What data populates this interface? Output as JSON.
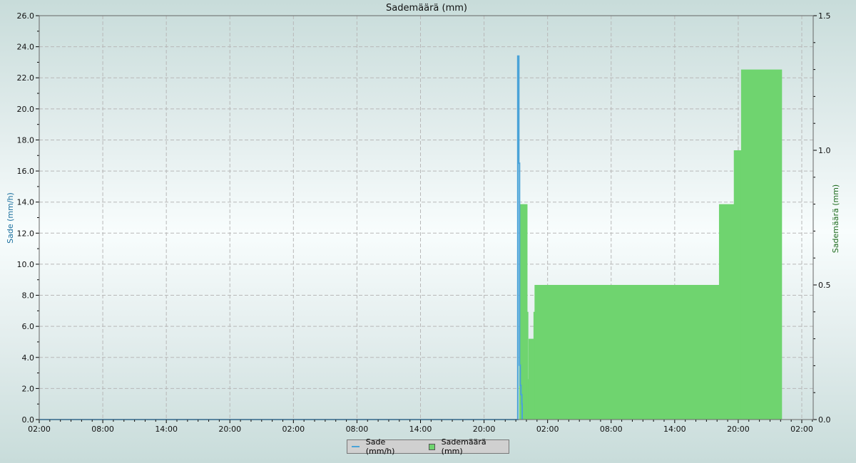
{
  "chart_data": {
    "type": "line+area",
    "title": "Sademäärä (mm)",
    "ylabel_left": "Sade (mm/h)",
    "ylabel_right": "Sademäärä (mm)",
    "ylim_left": [
      0,
      26
    ],
    "ylim_right": [
      0,
      1.5
    ],
    "xlim": [
      "d1 02:00",
      "d4 03:04"
    ],
    "x_tick_labels": [
      "02:00",
      "08:00",
      "14:00",
      "20:00",
      "02:00",
      "08:00",
      "14:00",
      "20:00",
      "02:00",
      "08:00",
      "14:00",
      "20:00",
      "02:00"
    ],
    "y_left_ticks": [
      "0.0",
      "2.0",
      "4.0",
      "6.0",
      "8.0",
      "10.0",
      "12.0",
      "14.0",
      "16.0",
      "18.0",
      "20.0",
      "22.0",
      "24.0",
      "26.0"
    ],
    "y_right_ticks": [
      "0.0",
      "0.5",
      "1.0",
      "1.5"
    ],
    "grid": true,
    "legend_position": "bottom-center",
    "series": [
      {
        "name": "Sade (mm/h)",
        "axis": "left",
        "kind": "line",
        "color": "#4aa3d8",
        "x": [
          "d1 02:00",
          "d2 23:10",
          "d2 23:11",
          "d2 23:17",
          "d2 23:21",
          "d2 23:25",
          "d2 23:29",
          "d2 23:34",
          "d2 23:36"
        ],
        "y": [
          0,
          0,
          23.4,
          16.5,
          3.5,
          2.2,
          1.6,
          1.0,
          0
        ]
      },
      {
        "name": "Sademäärä (mm)",
        "axis": "right",
        "kind": "step-area",
        "color": "#6fd46f",
        "x": [
          "d2 23:19",
          "d3 00:04",
          "d3 00:09",
          "d3 00:12",
          "d3 00:40",
          "d3 00:46",
          "d3 18:11",
          "d3 19:35",
          "d3 20:16",
          "d4 00:06"
        ],
        "y": [
          0.8,
          0.4,
          0.15,
          0.3,
          0.4,
          0.5,
          0.8,
          1.0,
          1.3,
          0
        ]
      }
    ]
  },
  "legend": {
    "items": [
      "Sade (mm/h)",
      "Sademäärä (mm)"
    ]
  }
}
